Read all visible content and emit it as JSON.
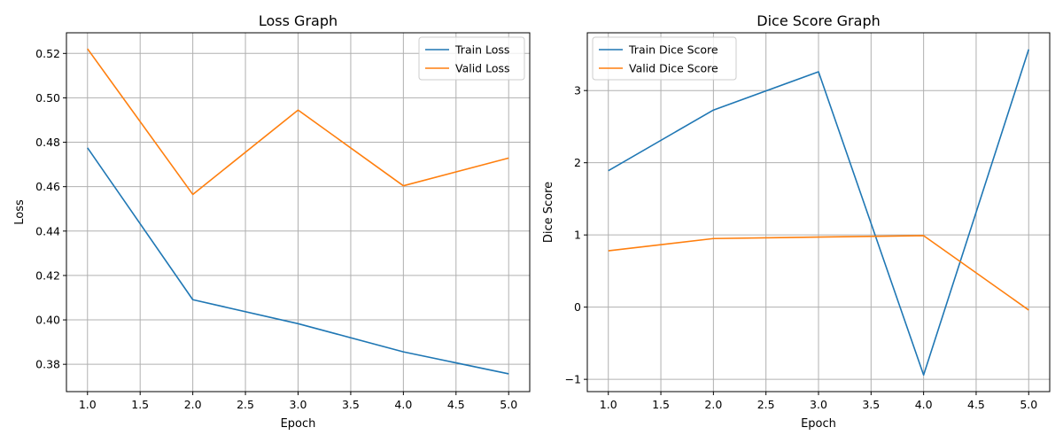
{
  "chart_data": [
    {
      "type": "line",
      "title": "Loss Graph",
      "xlabel": "Epoch",
      "ylabel": "Loss",
      "x": [
        1,
        2,
        3,
        4,
        5
      ],
      "xlim": [
        0.8,
        5.2
      ],
      "ylim": [
        0.3677,
        0.5293
      ],
      "xticks": [
        1.0,
        1.5,
        2.0,
        2.5,
        3.0,
        3.5,
        4.0,
        4.5,
        5.0
      ],
      "xtick_labels": [
        "1.0",
        "1.5",
        "2.0",
        "2.5",
        "3.0",
        "3.5",
        "4.0",
        "4.5",
        "5.0"
      ],
      "yticks": [
        0.38,
        0.4,
        0.42,
        0.44,
        0.46,
        0.48,
        0.5,
        0.52
      ],
      "ytick_labels": [
        "0.38",
        "0.40",
        "0.42",
        "0.44",
        "0.46",
        "0.48",
        "0.50",
        "0.52"
      ],
      "grid": true,
      "legend_position": "top-right",
      "series": [
        {
          "name": "Train Loss",
          "color": "#1f77b4",
          "values": [
            0.4775,
            0.4091,
            0.3983,
            0.3856,
            0.3757
          ]
        },
        {
          "name": "Valid Loss",
          "color": "#ff7f0e",
          "values": [
            0.5221,
            0.4565,
            0.4945,
            0.4604,
            0.4729
          ]
        }
      ]
    },
    {
      "type": "line",
      "title": "Dice Score Graph",
      "xlabel": "Epoch",
      "ylabel": "Dice Score",
      "x": [
        1,
        2,
        3,
        4,
        5
      ],
      "xlim": [
        0.8,
        5.2
      ],
      "ylim": [
        -1.17,
        3.8
      ],
      "xticks": [
        1.0,
        1.5,
        2.0,
        2.5,
        3.0,
        3.5,
        4.0,
        4.5,
        5.0
      ],
      "xtick_labels": [
        "1.0",
        "1.5",
        "2.0",
        "2.5",
        "3.0",
        "3.5",
        "4.0",
        "4.5",
        "5.0"
      ],
      "yticks": [
        -1,
        0,
        1,
        2,
        3
      ],
      "ytick_labels": [
        "−1",
        "0",
        "1",
        "2",
        "3"
      ],
      "grid": true,
      "legend_position": "top-left",
      "series": [
        {
          "name": "Train Dice Score",
          "color": "#1f77b4",
          "values": [
            1.89,
            2.73,
            3.26,
            -0.94,
            3.57
          ]
        },
        {
          "name": "Valid Dice Score",
          "color": "#ff7f0e",
          "values": [
            0.78,
            0.95,
            0.97,
            0.99,
            -0.04
          ]
        }
      ]
    }
  ]
}
